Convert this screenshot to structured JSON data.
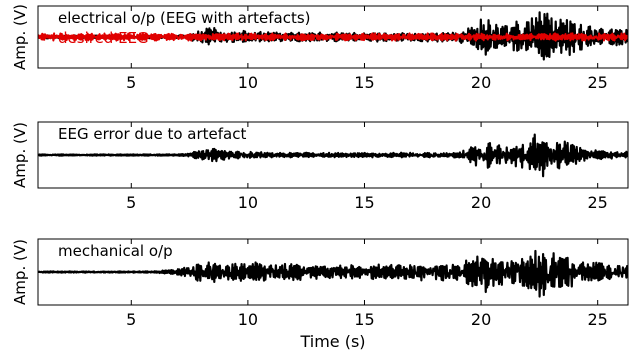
{
  "chart_data": [
    {
      "type": "line",
      "ylabel": "Amp. (V)",
      "xlabel": "",
      "xlim": [
        1,
        26.3
      ],
      "ylim": [
        -1,
        1
      ],
      "xticks": [
        5,
        10,
        15,
        20,
        25
      ],
      "grid": false,
      "annotations": [
        {
          "text": "electrical o/p (EEG with artefacts)",
          "color": "#000000"
        },
        {
          "text": "desired EEG",
          "color": "#e00000"
        }
      ],
      "series": [
        {
          "color": "#000000",
          "x": [
            1,
            2,
            3,
            4,
            5,
            6,
            7,
            7.5,
            8,
            8.5,
            9,
            9.5,
            10,
            11,
            12,
            13,
            14,
            15,
            16,
            17,
            18,
            19,
            19.5,
            20,
            20.2,
            20.5,
            21,
            21.5,
            22,
            22.3,
            22.5,
            22.8,
            23,
            23.3,
            23.6,
            24,
            24.5,
            25,
            25.5,
            26.3
          ],
          "y": [
            0.05,
            0.05,
            0.05,
            0.05,
            0.05,
            0.05,
            0.05,
            0.1,
            0.25,
            0.35,
            0.25,
            0.2,
            0.2,
            0.15,
            0.15,
            0.15,
            0.15,
            0.15,
            0.15,
            0.15,
            0.15,
            0.15,
            0.3,
            0.6,
            0.7,
            0.5,
            0.4,
            0.5,
            0.6,
            0.8,
            0.95,
            0.8,
            0.7,
            0.6,
            0.7,
            0.5,
            0.4,
            0.3,
            0.3,
            0.25
          ]
        },
        {
          "color": "#e00000",
          "x": [
            1,
            5,
            10,
            15,
            20,
            25,
            26.3
          ],
          "y": [
            0.12,
            0.12,
            0.12,
            0.12,
            0.12,
            0.12,
            0.12
          ]
        }
      ]
    },
    {
      "type": "line",
      "ylabel": "Amp. (V)",
      "xlabel": "",
      "xlim": [
        1,
        26.3
      ],
      "ylim": [
        -1,
        1
      ],
      "xticks": [
        5,
        10,
        15,
        20,
        25
      ],
      "grid": false,
      "annotations": [
        {
          "text": "EEG error due to artefact",
          "color": "#000000"
        }
      ],
      "series": [
        {
          "color": "#000000",
          "x": [
            1,
            2,
            3,
            4,
            5,
            6,
            7,
            7.5,
            8,
            8.5,
            9,
            9.5,
            10,
            11,
            12,
            13,
            14,
            15,
            16,
            17,
            18,
            19,
            19.5,
            20,
            20.2,
            20.5,
            21,
            21.5,
            22,
            22.3,
            22.5,
            22.8,
            23,
            23.3,
            23.6,
            24,
            24.5,
            25,
            25.5,
            26.3
          ],
          "y": [
            0.02,
            0.02,
            0.02,
            0.02,
            0.02,
            0.02,
            0.02,
            0.06,
            0.15,
            0.2,
            0.15,
            0.12,
            0.1,
            0.08,
            0.08,
            0.07,
            0.07,
            0.07,
            0.07,
            0.07,
            0.08,
            0.08,
            0.2,
            0.45,
            0.55,
            0.35,
            0.3,
            0.35,
            0.45,
            0.65,
            0.75,
            0.6,
            0.5,
            0.45,
            0.5,
            0.3,
            0.2,
            0.15,
            0.12,
            0.1
          ]
        }
      ]
    },
    {
      "type": "line",
      "ylabel": "Amp. (V)",
      "xlabel": "Time (s)",
      "xlim": [
        1,
        26.3
      ],
      "ylim": [
        -1,
        1
      ],
      "xticks": [
        5,
        10,
        15,
        20,
        25
      ],
      "grid": false,
      "annotations": [
        {
          "text": "mechanical o/p",
          "color": "#000000"
        }
      ],
      "series": [
        {
          "color": "#000000",
          "x": [
            1,
            2,
            3,
            4,
            5,
            6,
            7,
            7.5,
            8,
            8.5,
            9,
            9.5,
            10,
            11,
            12,
            13,
            14,
            15,
            16,
            17,
            18,
            19,
            19.5,
            20,
            20.2,
            20.5,
            21,
            21.5,
            22,
            22.3,
            22.5,
            22.8,
            23,
            23.3,
            23.6,
            24,
            24.5,
            25,
            25.5,
            26.3
          ],
          "y": [
            0.02,
            0.02,
            0.02,
            0.02,
            0.02,
            0.02,
            0.1,
            0.2,
            0.3,
            0.35,
            0.3,
            0.28,
            0.3,
            0.28,
            0.25,
            0.22,
            0.22,
            0.22,
            0.25,
            0.25,
            0.28,
            0.3,
            0.4,
            0.6,
            0.65,
            0.45,
            0.4,
            0.45,
            0.55,
            0.75,
            0.85,
            0.7,
            0.6,
            0.55,
            0.6,
            0.4,
            0.3,
            0.3,
            0.25,
            0.2
          ]
        }
      ]
    }
  ]
}
